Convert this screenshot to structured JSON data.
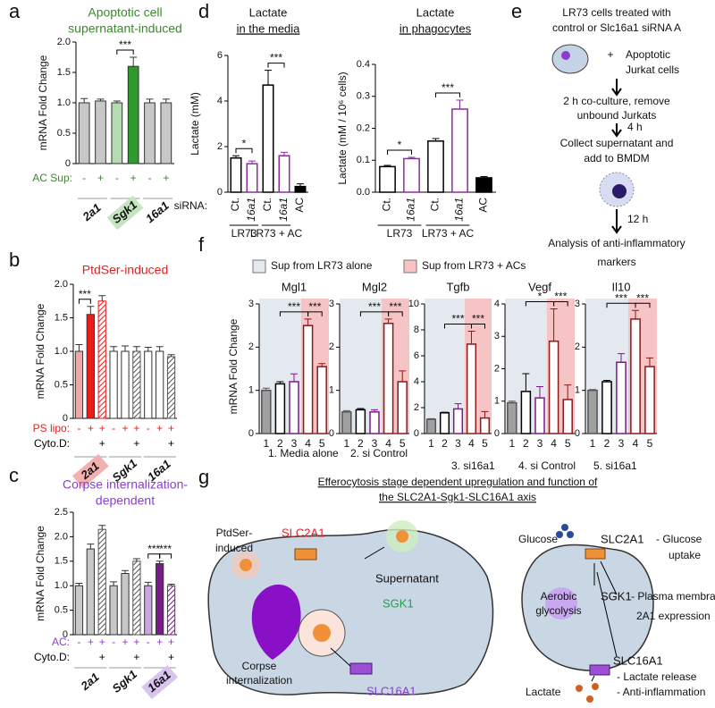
{
  "panel_labels": [
    "a",
    "b",
    "c",
    "d",
    "e",
    "f",
    "g"
  ],
  "chart_data": [
    {
      "type": "bar",
      "title": [
        "Apoptotic cell",
        "supernatant-induced"
      ],
      "title_color": "#3a8a2a",
      "ylabel": "mRNA Fold Change",
      "ylim": [
        0,
        2
      ],
      "yticks": [
        0,
        0.5,
        {
          "value": 1,
          "label": "1.0"
        },
        1.5,
        {
          "value": 2,
          "label": "2.0"
        }
      ],
      "values": [
        1.0,
        1.03,
        1.0,
        1.6,
        1.0,
        1.0
      ],
      "errors": [
        0.07,
        0.03,
        0.03,
        0.15,
        0.06,
        0.06
      ],
      "colors": [
        "#c8c8c8",
        "#c8c8c8",
        "#b5dbb0",
        "#2e9a2e",
        "#c8c8c8",
        "#c8c8c8"
      ],
      "rows": [
        {
          "label": "AC Sup:",
          "labels": [
            "-",
            "+",
            "-",
            "+",
            "-",
            "+"
          ],
          "color": "#3a8a2a"
        }
      ],
      "groups": [
        "2a1",
        "Sgk1",
        "16a1"
      ],
      "group_highlight": {
        "index": 1,
        "color": "#c5e4c0"
      },
      "significance": [
        {
          "from": 2,
          "to": 3,
          "label": "***"
        }
      ]
    },
    {
      "type": "bar",
      "title": [
        "PtdSer-induced"
      ],
      "title_color": "#e8201c",
      "ylabel": "mRNA Fold Change",
      "ylim": [
        0,
        2
      ],
      "yticks": [
        0,
        0.5,
        {
          "value": 1,
          "label": "1.0"
        },
        1.5,
        {
          "value": 2,
          "label": "2.0"
        }
      ],
      "values": [
        1.0,
        1.55,
        1.75,
        1.0,
        1.0,
        1.0,
        1.0,
        1.0,
        0.92
      ],
      "errors": [
        0.1,
        0.12,
        0.08,
        0.07,
        0.08,
        0.07,
        0.06,
        0.07,
        0.03
      ],
      "colors": [
        "#f4a6a6",
        "#ee1c1c",
        "#ee1c1c",
        "#ffffff",
        "#ffffff",
        "#555555",
        "#ffffff",
        "#ffffff",
        "#555555"
      ],
      "hatch": [
        false,
        false,
        true,
        false,
        false,
        true,
        false,
        false,
        true
      ],
      "rows": [
        {
          "label": "PS lipo:",
          "labels": [
            "-",
            "+",
            "+",
            "-",
            "+",
            "+",
            "-",
            "+",
            "+"
          ],
          "color": "#e8201c"
        },
        {
          "label": "Cyto.D:",
          "labels": [
            null,
            null,
            "+",
            null,
            null,
            "+",
            null,
            null,
            "+"
          ],
          "color": "#000000"
        }
      ],
      "groups": [
        "2a1",
        "Sgk1",
        "16a1"
      ],
      "group_highlight": {
        "index": 0,
        "color": "#f4b0b0"
      },
      "significance": [
        {
          "from": 0,
          "to": 1,
          "label": "***"
        }
      ]
    },
    {
      "type": "bar",
      "title": [
        "Corpse internalization-",
        "dependent"
      ],
      "title_color": "#8a3dd0",
      "ylabel": "mRNA Fold Change",
      "ylim": [
        0,
        2.5
      ],
      "yticks": [
        0,
        0.5,
        {
          "value": 1,
          "label": "1.0"
        },
        1.5,
        {
          "value": 2,
          "label": "2.0"
        },
        2.5
      ],
      "values": [
        1.0,
        1.75,
        2.15,
        1.0,
        1.25,
        1.5,
        1.0,
        1.45,
        1.0
      ],
      "errors": [
        0.05,
        0.1,
        0.08,
        0.08,
        0.06,
        0.05,
        0.07,
        0.05,
        0.03
      ],
      "colors": [
        "#c8c8c8",
        "#c8c8c8",
        "#555555",
        "#c8c8c8",
        "#c8c8c8",
        "#555555",
        "#c9a6e0",
        "#7b1a8a",
        "#7b1a8a"
      ],
      "hatch": [
        false,
        false,
        true,
        false,
        false,
        true,
        false,
        false,
        true
      ],
      "rows": [
        {
          "label": "AC:",
          "labels": [
            "-",
            "+",
            "+",
            "-",
            "+",
            "+",
            "-",
            "+",
            "+"
          ],
          "color": "#8a3dd0"
        },
        {
          "label": "Cyto.D:",
          "labels": [
            null,
            null,
            "+",
            null,
            null,
            "+",
            null,
            null,
            "+"
          ],
          "color": "#000000"
        }
      ],
      "groups": [
        "2a1",
        "Sgk1",
        "16a1"
      ],
      "group_highlight": {
        "index": 2,
        "color": "#d8c4ee"
      },
      "significance": [
        {
          "from": 6,
          "to": 7,
          "label": "***"
        },
        {
          "from": 7,
          "to": 8,
          "label": "***"
        }
      ]
    },
    {
      "type": "bar",
      "title": [
        "Lactate",
        "in the media"
      ],
      "title_underline": true,
      "ylabel": "Lactate (mM)",
      "ylim": [
        0,
        6
      ],
      "yticks": [
        0,
        2,
        4,
        6
      ],
      "categories": [
        "Ct.",
        "16a1",
        "Ct.",
        "16a1",
        "AC"
      ],
      "row_label": "siRNA:",
      "values": [
        1.5,
        1.25,
        4.7,
        1.6,
        0.25
      ],
      "errors": [
        0.1,
        0.12,
        0.65,
        0.15,
        0.12
      ],
      "colors": [
        "#ffffff",
        "#ffffff",
        "#ffffff",
        "#ffffff",
        "#000000"
      ],
      "strokes": [
        "#000000",
        "#8a2da0",
        "#000000",
        "#8a2da0",
        "#000000"
      ],
      "groups": [
        "LR73",
        "LR73 + AC"
      ],
      "significance": [
        {
          "from": 0,
          "to": 1,
          "label": "*"
        },
        {
          "from": 2,
          "to": 3,
          "label": "***"
        }
      ]
    },
    {
      "type": "bar",
      "title": [
        "Lactate",
        "in phagocytes"
      ],
      "title_underline": true,
      "ylabel": "Lactate (mM / 10⁶ cells)",
      "ylim": [
        0,
        0.4
      ],
      "yticks": [
        {
          "value": 0,
          "label": "0.0"
        },
        0.1,
        0.2,
        0.3,
        0.4
      ],
      "categories": [
        "Ct.",
        "16a1",
        "Ct.",
        "16a1",
        "AC"
      ],
      "values": [
        0.08,
        0.105,
        0.16,
        0.26,
        0.045
      ],
      "errors": [
        0.004,
        0.004,
        0.008,
        0.028,
        0.004
      ],
      "colors": [
        "#ffffff",
        "#ffffff",
        "#ffffff",
        "#ffffff",
        "#000000"
      ],
      "strokes": [
        "#000000",
        "#8a2da0",
        "#000000",
        "#8a2da0",
        "#000000"
      ],
      "groups": [
        "LR73",
        "LR73 + AC"
      ],
      "significance": [
        {
          "from": 0,
          "to": 1,
          "label": "*"
        },
        {
          "from": 2,
          "to": 3,
          "label": "***"
        }
      ]
    },
    {
      "type": "bar",
      "title": [
        "Mgl1"
      ],
      "ylim": [
        0,
        3
      ],
      "yticks": [
        0,
        1,
        2,
        3
      ],
      "categories": [
        "1",
        "2",
        "3",
        "4",
        "5"
      ],
      "values": [
        1.0,
        1.15,
        1.2,
        2.5,
        1.55
      ],
      "errors": [
        0.05,
        0.05,
        0.18,
        0.15,
        0.07
      ],
      "colors": [
        "#a0a0a0",
        "#ffffff",
        "#ffffff",
        "#ffffff",
        "#ffffff"
      ],
      "strokes": [
        "#555555",
        "#000000",
        "#7b1a8a",
        "#8b1a1a",
        "#8b1a1a"
      ],
      "significance": [
        {
          "from": 1,
          "to": 3,
          "label": "***"
        },
        {
          "from": 3,
          "to": 4,
          "label": "***"
        }
      ]
    },
    {
      "type": "bar",
      "title": [
        "Mgl2"
      ],
      "ylim": [
        0,
        3
      ],
      "yticks": [
        0,
        1,
        2,
        3
      ],
      "categories": [
        "1",
        "2",
        "3",
        "4",
        "5"
      ],
      "values": [
        0.5,
        0.55,
        0.5,
        2.55,
        1.2
      ],
      "errors": [
        0.03,
        0.03,
        0.05,
        0.1,
        0.25
      ],
      "colors": [
        "#a0a0a0",
        "#ffffff",
        "#ffffff",
        "#ffffff",
        "#ffffff"
      ],
      "strokes": [
        "#555555",
        "#000000",
        "#7b1a8a",
        "#8b1a1a",
        "#8b1a1a"
      ],
      "significance": [
        {
          "from": 1,
          "to": 3,
          "label": "***"
        },
        {
          "from": 3,
          "to": 4,
          "label": "***"
        }
      ]
    },
    {
      "type": "bar",
      "title": [
        "Tgfb"
      ],
      "ylim": [
        0,
        10
      ],
      "yticks": [
        0,
        2,
        4,
        6,
        8,
        10
      ],
      "categories": [
        "1",
        "2",
        "3",
        "4",
        "5"
      ],
      "values": [
        1.1,
        1.6,
        1.9,
        6.9,
        1.2
      ],
      "errors": [
        0.05,
        0.05,
        0.4,
        1.0,
        0.5
      ],
      "colors": [
        "#a0a0a0",
        "#ffffff",
        "#ffffff",
        "#ffffff",
        "#ffffff"
      ],
      "strokes": [
        "#555555",
        "#000000",
        "#7b1a8a",
        "#8b1a1a",
        "#8b1a1a"
      ],
      "significance": [
        {
          "from": 1,
          "to": 3,
          "label": "***"
        },
        {
          "from": 3,
          "to": 4,
          "label": "***"
        }
      ]
    },
    {
      "type": "bar",
      "title": [
        "Vegf"
      ],
      "ylim": [
        0,
        4
      ],
      "yticks": [
        0,
        1,
        2,
        3,
        4
      ],
      "categories": [
        "1",
        "2",
        "3",
        "4",
        "5"
      ],
      "values": [
        0.95,
        1.3,
        1.1,
        2.85,
        1.05
      ],
      "errors": [
        0.05,
        0.55,
        0.35,
        1.0,
        0.45
      ],
      "colors": [
        "#a0a0a0",
        "#ffffff",
        "#ffffff",
        "#ffffff",
        "#ffffff"
      ],
      "strokes": [
        "#555555",
        "#000000",
        "#7b1a8a",
        "#8b1a1a",
        "#8b1a1a"
      ],
      "significance": [
        {
          "from": 1,
          "to": 3,
          "label": "*"
        },
        {
          "from": 3,
          "to": 4,
          "label": "***"
        }
      ]
    },
    {
      "type": "bar",
      "title": [
        "Il10"
      ],
      "ylim": [
        0,
        3
      ],
      "yticks": [
        0,
        1,
        2,
        3
      ],
      "categories": [
        "1",
        "2",
        "3",
        "4",
        "5"
      ],
      "values": [
        1.0,
        1.2,
        1.65,
        2.65,
        1.55
      ],
      "errors": [
        0.02,
        0.03,
        0.2,
        0.2,
        0.2
      ],
      "colors": [
        "#a0a0a0",
        "#ffffff",
        "#ffffff",
        "#ffffff",
        "#ffffff"
      ],
      "strokes": [
        "#555555",
        "#000000",
        "#7b1a8a",
        "#8b1a1a",
        "#8b1a1a"
      ],
      "significance": [
        {
          "from": 1,
          "to": 3,
          "label": "***"
        },
        {
          "from": 3,
          "to": 4,
          "label": "***"
        }
      ]
    }
  ],
  "panel_f": {
    "ylabel": "mRNA Fold Change",
    "legend": [
      {
        "name": "Sup from LR73 alone",
        "color": "#e4e8ef"
      },
      {
        "name": "Sup from LR73 + ACs",
        "color": "#f6c4c4"
      }
    ],
    "footnotes": [
      "1. Media alone",
      "2. si Control",
      "3. si16a1",
      "4. si Control",
      "5. si16a1"
    ]
  },
  "panel_e": {
    "header": [
      "LR73 cells treated with",
      "control or Slc16a1 siRNA A"
    ],
    "plus": "+",
    "jurkat": [
      "Apoptotic",
      "Jurkat cells"
    ],
    "step1": [
      "2 h co-culture, remove",
      "unbound Jurkats"
    ],
    "time1": "4 h",
    "step2": [
      "Collect supernatant and",
      "add to BMDM"
    ],
    "time2": "12 h",
    "result": [
      "Analysis of anti-inflammatory",
      "markers"
    ]
  },
  "panel_g": {
    "title": [
      "Efferocytosis stage dependent upregulation and function of",
      "the SLC2A1-Sgk1-SLC16A1 axis"
    ],
    "left": {
      "ptdser": [
        "PtdSer-",
        "induced"
      ],
      "slc2a1": "SLC2A1",
      "supernatant": "Supernatant",
      "sgk1": "SGK1",
      "corpse": [
        "Corpse",
        "internalization"
      ],
      "slc16a1": "SLC16A1"
    },
    "right": {
      "glucose": "Glucose",
      "slc2a1": "SLC2A1",
      "slc2a1_note": [
        "- Glucose",
        "uptake"
      ],
      "glycolysis": [
        "Aerobic",
        "glycolysis"
      ],
      "sgk1": "SGK1",
      "sgk1_note": [
        "- Plasma membrane",
        "2A1 expression"
      ],
      "slc16a1": "SLC16A1",
      "slc16a1_note": [
        "- Lactate release",
        "- Anti-inflammation"
      ],
      "lactate": "Lactate"
    }
  }
}
